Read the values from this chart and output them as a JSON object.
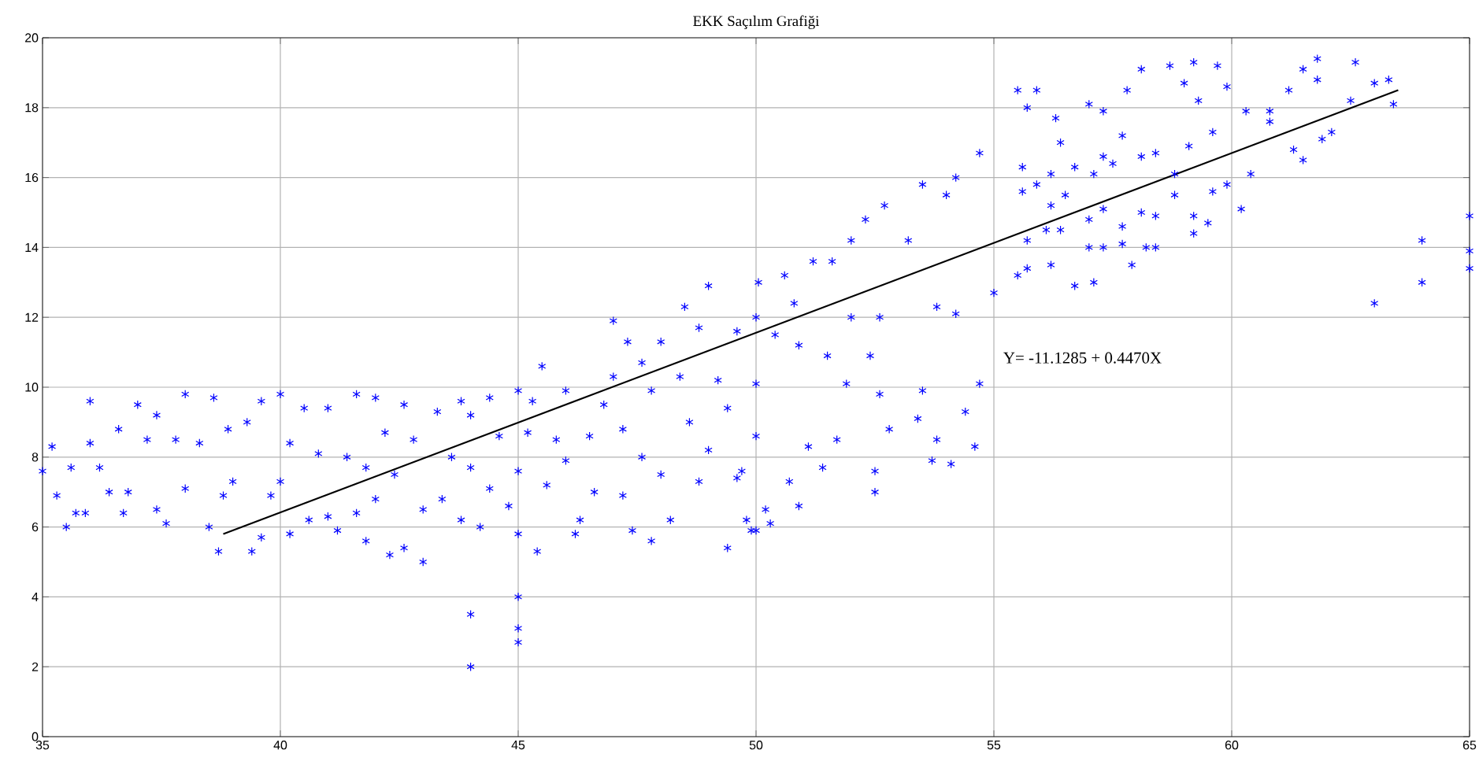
{
  "chart_data": {
    "type": "scatter",
    "title": "EKK  Saçılım Grafiği",
    "xlim": [
      35,
      65
    ],
    "ylim": [
      0,
      20
    ],
    "xticks": [
      35,
      40,
      45,
      50,
      55,
      60,
      65
    ],
    "yticks": [
      0,
      2,
      4,
      6,
      8,
      10,
      12,
      14,
      16,
      18,
      20
    ],
    "grid": true,
    "marker": "cross",
    "annotations": [
      "Y= -11.1285 + 0.4470X"
    ],
    "series": [
      {
        "color": "#0000ff",
        "x": [
          35,
          35.2,
          35.3,
          35.6,
          35.5,
          35.7,
          35.9,
          36.0,
          36.0,
          36.2,
          36.4,
          36.6,
          36.7,
          36.8,
          37.0,
          37.2,
          37.4,
          37.4,
          37.6,
          37.8,
          38.0,
          38.0,
          38.3,
          38.6,
          38.8,
          38.9,
          39.0,
          38.5,
          38.7,
          39.3,
          39.6,
          39.8,
          39.4,
          39.6,
          40.0,
          40.0,
          40.2,
          40.2,
          40.5,
          40.6,
          40.8,
          41,
          41,
          41.2,
          41.4,
          41.6,
          41.6,
          41.8,
          41.8,
          42.0,
          42.0,
          42.2,
          42.3,
          42.4,
          42.6,
          42.6,
          42.8,
          43.0,
          43.0,
          43.3,
          43.4,
          43.6,
          43.8,
          43.8,
          44.0,
          44.0,
          44.0,
          44.0,
          44.2,
          44.4,
          44.4,
          44.6,
          44.8,
          45.0,
          45.0,
          45.0,
          45.0,
          45.0,
          45.0,
          45.2,
          45.3,
          45.4,
          45.5,
          45.6,
          45.8,
          46.0,
          46.0,
          46.2,
          46.3,
          46.5,
          46.6,
          46.8,
          47.0,
          47.0,
          47.2,
          47.3,
          47.2,
          47.4,
          47.6,
          47.6,
          47.8,
          47.8,
          48.0,
          48.0,
          48.2,
          48.4,
          48.5,
          48.6,
          48.8,
          48.8,
          49.0,
          49.0,
          49.2,
          49.4,
          49.4,
          49.6,
          49.7,
          49.8,
          50.0,
          50.0,
          50.0,
          50.0,
          50.05,
          50.6,
          51.2,
          51.6,
          52.0,
          52.3,
          52.7,
          53.2,
          53.5,
          54.0,
          54.2,
          54.7,
          55.0,
          54.2,
          53.8,
          52.6,
          52.0,
          50.8,
          50.4,
          50.9,
          51.5,
          51.9,
          52.4,
          52.6,
          52.8,
          52.5,
          52.5,
          53.5,
          53.4,
          53.8,
          53.7,
          54.1,
          54.4,
          54.6,
          54.7,
          50.9,
          50.3,
          49.9,
          50.2,
          50.7,
          51.4,
          51.7,
          51.1,
          49.6,
          55.5,
          55.9,
          55.7,
          56.3,
          56.4,
          57.0,
          57.3,
          57.8,
          58.1,
          58.7,
          59.2,
          59.7,
          59.0,
          59.9,
          60.3,
          60.8,
          61.2,
          61.5,
          61.8,
          61.8,
          62.6,
          63.0,
          63.3,
          63.4,
          62.5,
          62.1,
          61.9,
          61.5,
          61.3,
          60.8,
          60.4,
          60.2,
          59.9,
          59.6,
          59.3,
          59.1,
          58.8,
          58.4,
          58.1,
          57.7,
          57.5,
          57.3,
          57.1,
          56.7,
          56.2,
          55.6,
          55.6,
          55.9,
          56.2,
          56.5,
          57.0,
          57.3,
          57.7,
          58.1,
          58.4,
          58.8,
          59.2,
          59.2,
          59.5,
          59.6,
          55.7,
          56.1,
          56.4,
          57.0,
          57.3,
          57.7,
          58.2,
          58.4,
          57.9,
          55.5,
          55.7,
          56.2,
          56.7,
          57.1,
          63.0,
          64.0,
          64.0,
          65.0,
          65.0,
          65.0
        ],
        "values": [
          7.6,
          8.3,
          6.9,
          7.7,
          6.0,
          6.4,
          6.4,
          9.6,
          8.4,
          7.7,
          7.0,
          8.8,
          6.4,
          7.0,
          9.5,
          8.5,
          9.2,
          6.5,
          6.1,
          8.5,
          9.8,
          7.1,
          8.4,
          9.7,
          6.9,
          8.8,
          7.3,
          6.0,
          5.3,
          9.0,
          9.6,
          6.9,
          5.3,
          5.7,
          9.8,
          7.3,
          8.4,
          5.8,
          9.4,
          6.2,
          8.1,
          9.4,
          6.3,
          5.9,
          8.0,
          9.8,
          6.4,
          7.7,
          5.6,
          9.7,
          6.8,
          8.7,
          5.2,
          7.5,
          9.5,
          5.4,
          8.5,
          6.5,
          5.0,
          9.3,
          6.8,
          8.0,
          9.6,
          6.2,
          9.2,
          7.7,
          2.0,
          3.5,
          6.0,
          9.7,
          7.1,
          8.6,
          6.6,
          9.9,
          7.6,
          5.8,
          4.0,
          3.1,
          2.7,
          8.7,
          9.6,
          5.3,
          10.6,
          7.2,
          8.5,
          9.9,
          7.9,
          5.8,
          6.2,
          8.6,
          7.0,
          9.5,
          11.9,
          10.3,
          8.8,
          11.3,
          6.9,
          5.9,
          10.7,
          8.0,
          9.9,
          5.6,
          11.3,
          7.5,
          6.2,
          10.3,
          12.3,
          9.0,
          11.7,
          7.3,
          12.9,
          8.2,
          10.2,
          9.4,
          5.4,
          11.6,
          7.6,
          6.2,
          12.0,
          10.1,
          8.6,
          5.9,
          13.0,
          13.2,
          13.6,
          13.6,
          14.2,
          14.8,
          15.2,
          14.2,
          15.8,
          15.5,
          16.0,
          16.7,
          12.7,
          12.1,
          12.3,
          12.0,
          12.0,
          12.4,
          11.5,
          11.2,
          10.9,
          10.1,
          10.9,
          9.8,
          8.8,
          7.0,
          7.6,
          9.9,
          9.1,
          8.5,
          7.9,
          7.8,
          9.3,
          8.3,
          10.1,
          6.6,
          6.1,
          5.9,
          6.5,
          7.3,
          7.7,
          8.5,
          8.3,
          7.4,
          18.5,
          18.5,
          18.0,
          17.7,
          17.0,
          18.1,
          17.9,
          18.5,
          19.1,
          19.2,
          19.3,
          19.2,
          18.7,
          18.6,
          17.9,
          17.9,
          18.5,
          19.1,
          19.4,
          18.8,
          19.3,
          18.7,
          18.8,
          18.1,
          18.2,
          17.3,
          17.1,
          16.5,
          16.8,
          17.6,
          16.1,
          15.1,
          15.8,
          17.3,
          18.2,
          16.9,
          16.1,
          16.7,
          16.6,
          17.2,
          16.4,
          16.6,
          16.1,
          16.3,
          16.1,
          16.3,
          15.6,
          15.8,
          15.2,
          15.5,
          14.8,
          15.1,
          14.6,
          15.0,
          14.9,
          15.5,
          14.9,
          14.4,
          14.7,
          15.6,
          14.2,
          14.5,
          14.5,
          14.0,
          14.0,
          14.1,
          14.0,
          14.0,
          13.5,
          13.2,
          13.4,
          13.5,
          12.9,
          13.0,
          12.4,
          14.2,
          13.0,
          14.9,
          13.9,
          13.4
        ]
      },
      {
        "type": "line",
        "color": "#000000",
        "marker": "none",
        "x": [
          38.8,
          63.5
        ],
        "values": [
          5.8,
          18.5
        ]
      }
    ]
  }
}
